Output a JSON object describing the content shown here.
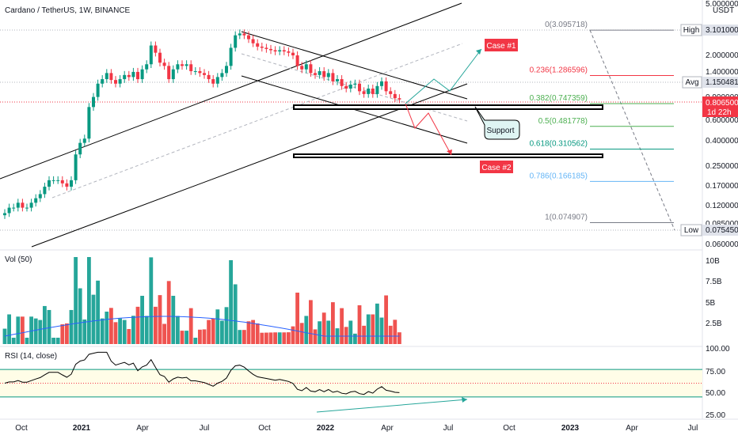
{
  "header": {
    "symbol_title": "Cardano / TetherUS, 1W, BINANCE",
    "currency": "USDT"
  },
  "price_axis": {
    "ticks": [
      "5.000000",
      "3.101000",
      "2.000000",
      "1.400000",
      "1.150481",
      "0.900000",
      "0.806500",
      "0.600000",
      "0.400000",
      "0.250000",
      "0.170000",
      "0.120000",
      "0.085000",
      "0.075450",
      "0.060000"
    ],
    "high_label": "High",
    "high_value": "3.101000",
    "avg_label": "Avg",
    "avg_value": "1.150481",
    "last_price": "0.806500",
    "countdown": "1d 22h",
    "low_label": "Low",
    "low_value": "0.075450"
  },
  "fib_levels": [
    {
      "text": "0(3.095718)",
      "price": 3.095718,
      "color": "#787b86"
    },
    {
      "text": "0.236(1.286596)",
      "price": 1.286596,
      "color": "#f23645"
    },
    {
      "text": "0.382(0.747359)",
      "price": 0.747359,
      "color": "#4caf50"
    },
    {
      "text": "0.5(0.481778)",
      "price": 0.481778,
      "color": "#4caf50"
    },
    {
      "text": "0.618(0.310562)",
      "price": 0.310562,
      "color": "#089981"
    },
    {
      "text": "0.786(0.166185)",
      "price": 0.166185,
      "color": "#64b5f6"
    },
    {
      "text": "1(0.074907)",
      "price": 0.074907,
      "color": "#787b86"
    }
  ],
  "annotations": {
    "case1": "Case #1",
    "case2": "Case #2",
    "support": "Support"
  },
  "volume_panel": {
    "title": "Vol (50)",
    "ticks": [
      "10B",
      "7.5B",
      "5B",
      "2.5B"
    ]
  },
  "rsi_panel": {
    "title": "RSI (14, close)",
    "ticks": [
      "100.00",
      "75.00",
      "50.00",
      "25.00"
    ]
  },
  "time_axis": [
    "Oct",
    "2021",
    "Apr",
    "Jul",
    "Oct",
    "2022",
    "Apr",
    "Jul",
    "Oct",
    "2023",
    "Apr",
    "Jul"
  ],
  "chart_data": {
    "type": "candlestick",
    "title": "Cardano / TetherUS, 1W, BINANCE",
    "x_range": [
      "2020-09",
      "2023-07"
    ],
    "price_scale": "log",
    "price_range": [
      0.06,
      5.0
    ],
    "price_series": {
      "name": "ADA/USDT weekly close (approx.)",
      "closes": [
        0.09,
        0.1,
        0.1,
        0.11,
        0.1,
        0.1,
        0.11,
        0.12,
        0.13,
        0.15,
        0.17,
        0.17,
        0.17,
        0.16,
        0.15,
        0.17,
        0.28,
        0.35,
        0.38,
        0.7,
        0.85,
        1.1,
        1.2,
        1.35,
        1.18,
        1.1,
        1.2,
        1.3,
        1.25,
        1.38,
        1.2,
        1.45,
        1.6,
        2.3,
        2.0,
        1.65,
        1.55,
        1.2,
        1.45,
        1.6,
        1.55,
        1.6,
        1.4,
        1.4,
        1.35,
        1.3,
        1.2,
        1.1,
        1.25,
        1.35,
        1.55,
        2.2,
        2.8,
        2.9,
        2.8,
        2.6,
        2.4,
        2.25,
        2.2,
        2.15,
        2.1,
        2.05,
        2.1,
        2.05,
        2.0,
        1.9,
        1.55,
        1.45,
        1.6,
        1.35,
        1.3,
        1.4,
        1.25,
        1.35,
        1.15,
        1.2,
        1.05,
        1.0,
        1.08,
        1.1,
        0.95,
        0.9,
        1.0,
        0.9,
        1.05,
        1.15,
        0.95,
        0.9,
        0.83,
        0.81
      ]
    },
    "volume_series": {
      "name": "Volume",
      "ma_length": 50
    },
    "rsi_series": {
      "name": "RSI (14, close)",
      "range": [
        0,
        100
      ],
      "levels": [
        70,
        50,
        30
      ]
    },
    "fib_retracement": [
      {
        "ratio": 0,
        "price": 3.095718
      },
      {
        "ratio": 0.236,
        "price": 1.286596
      },
      {
        "ratio": 0.382,
        "price": 0.747359
      },
      {
        "ratio": 0.5,
        "price": 0.481778
      },
      {
        "ratio": 0.618,
        "price": 0.310562
      },
      {
        "ratio": 0.786,
        "price": 0.166185
      },
      {
        "ratio": 1,
        "price": 0.074907
      }
    ],
    "marked_high": 3.101,
    "marked_low": 0.07545,
    "average": 1.150481,
    "last": 0.8065
  }
}
